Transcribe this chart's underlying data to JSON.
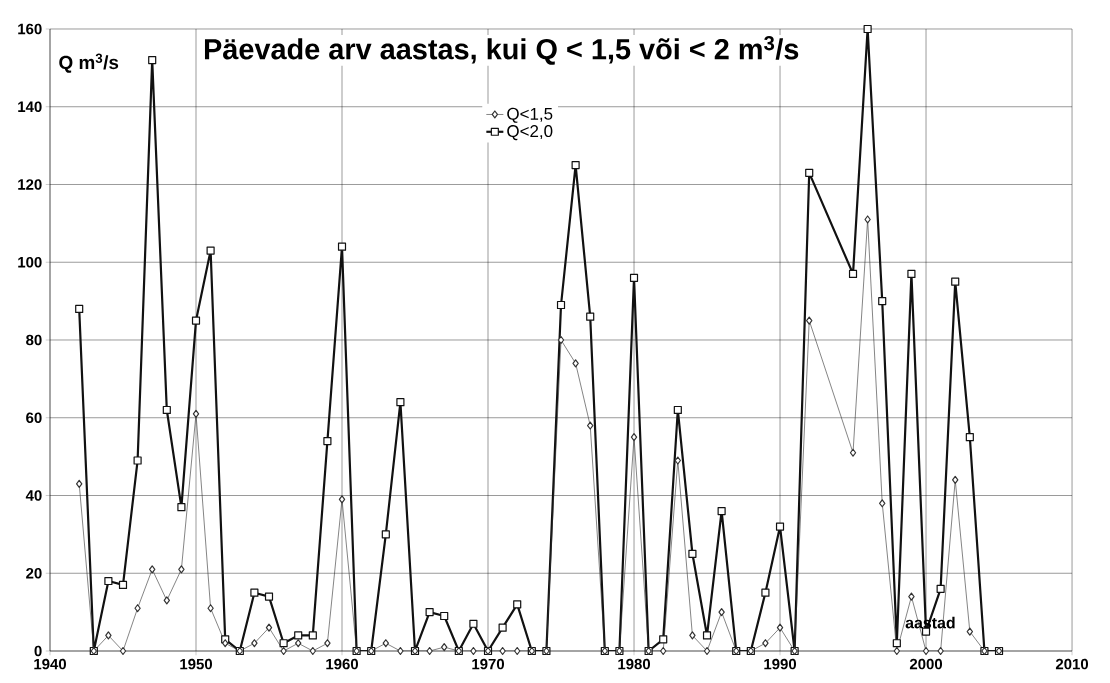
{
  "chart_data": {
    "type": "line",
    "title": "Päevade arv aastas, kui Q < 1,5 või < 2 m$^{3}$/s",
    "ylabel": "Q m$^{3}$/s",
    "xlabel": "aastad",
    "x": [
      1942,
      1943,
      1944,
      1945,
      1946,
      1947,
      1948,
      1949,
      1950,
      1951,
      1952,
      1953,
      1954,
      1955,
      1956,
      1957,
      1958,
      1959,
      1960,
      1961,
      1962,
      1963,
      1964,
      1965,
      1966,
      1967,
      1968,
      1969,
      1970,
      1971,
      1972,
      1973,
      1974,
      1975,
      1976,
      1977,
      1978,
      1979,
      1980,
      1981,
      1982,
      1983,
      1984,
      1985,
      1986,
      1987,
      1988,
      1989,
      1990,
      1991,
      1992,
      1995,
      1996,
      1997,
      1998,
      1999,
      2000,
      2001,
      2002,
      2003,
      2004,
      2005
    ],
    "series": [
      {
        "name": "Q<1,5",
        "color": "#333333",
        "marker": "diamond",
        "values": [
          43,
          0,
          4,
          0,
          11,
          21,
          13,
          21,
          61,
          11,
          2,
          0,
          2,
          6,
          0,
          2,
          0,
          2,
          39,
          0,
          0,
          2,
          0,
          0,
          0,
          1,
          0,
          0,
          0,
          0,
          0,
          0,
          0,
          80,
          74,
          58,
          0,
          0,
          55,
          0,
          0,
          49,
          4,
          0,
          10,
          0,
          0,
          2,
          6,
          0,
          85,
          51,
          111,
          38,
          0,
          14,
          0,
          0,
          44,
          5,
          0,
          0
        ]
      },
      {
        "name": "Q<2,0",
        "color": "#111111",
        "marker": "square",
        "values": [
          88,
          0,
          18,
          17,
          49,
          152,
          62,
          37,
          85,
          103,
          3,
          0,
          15,
          14,
          2,
          4,
          4,
          54,
          104,
          0,
          0,
          30,
          64,
          0,
          10,
          9,
          0,
          7,
          0,
          6,
          12,
          0,
          0,
          89,
          125,
          86,
          0,
          0,
          96,
          0,
          3,
          62,
          25,
          4,
          36,
          0,
          0,
          15,
          32,
          0,
          123,
          97,
          160,
          90,
          2,
          97,
          5,
          16,
          95,
          55,
          0,
          0
        ]
      }
    ],
    "xlim": [
      1940,
      2010
    ],
    "xticks": [
      1940,
      1950,
      1960,
      1970,
      1980,
      1990,
      2000,
      2010
    ],
    "ylim": [
      0,
      160
    ],
    "yticks": [
      0,
      20,
      40,
      60,
      80,
      100,
      120,
      140,
      160
    ],
    "grid": true,
    "legend": "top"
  }
}
